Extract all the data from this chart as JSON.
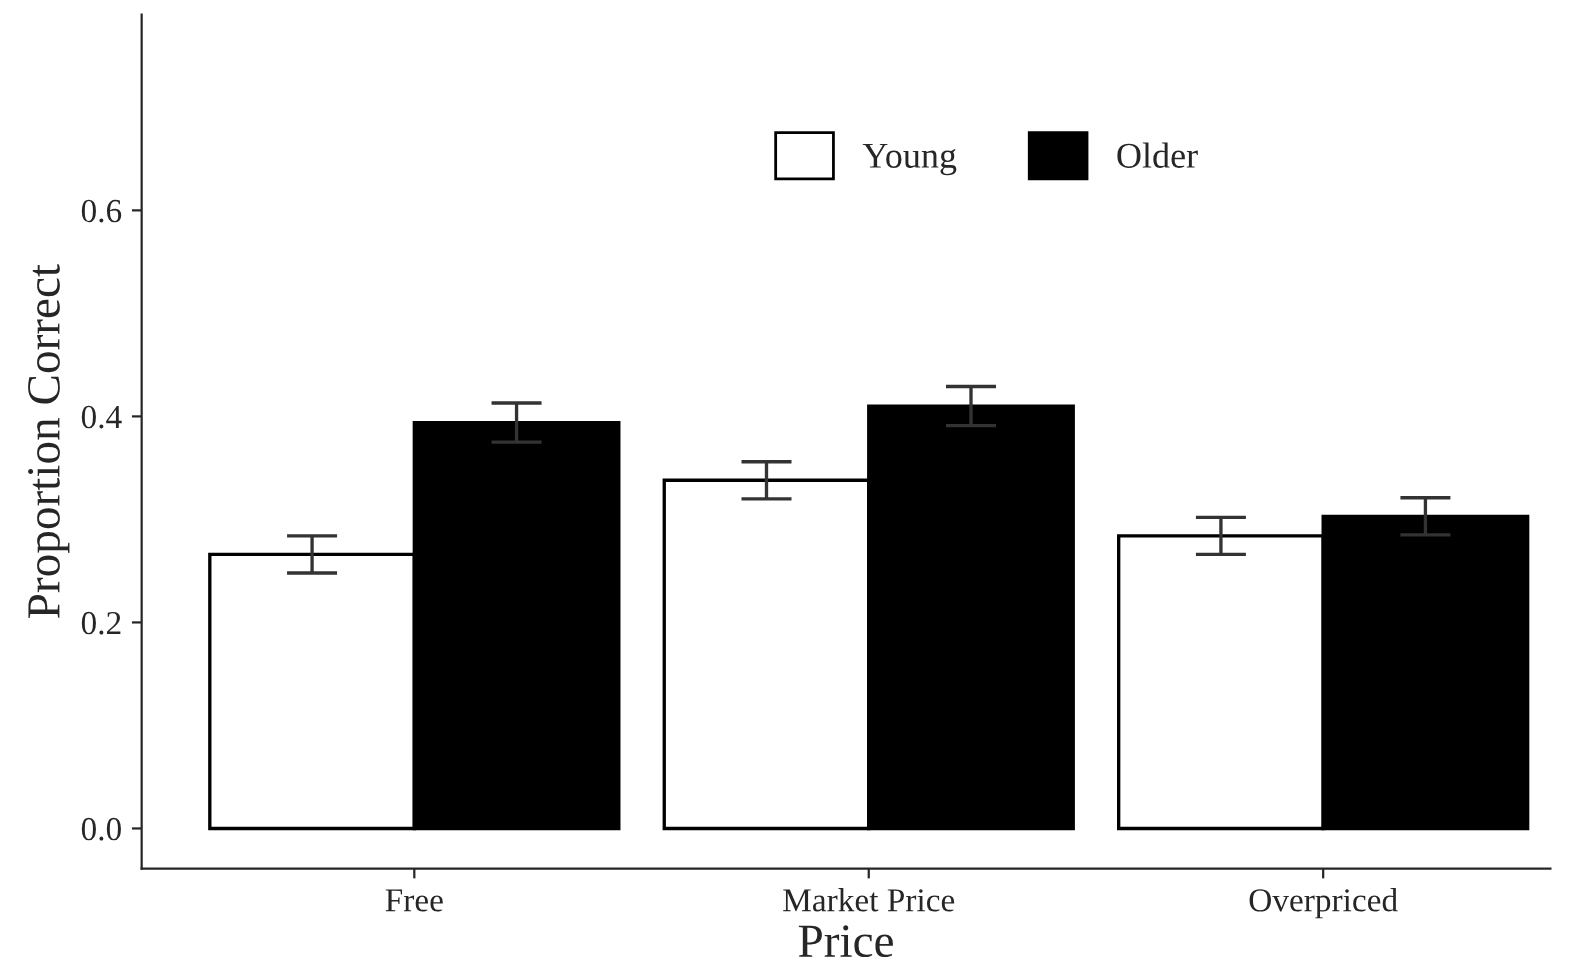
{
  "chart_data": {
    "type": "bar",
    "xlabel": "Price",
    "ylabel": "Proportion Correct",
    "categories": [
      "Free",
      "Market Price",
      "Overpriced"
    ],
    "series": [
      {
        "name": "Young",
        "color": "#ffffff",
        "values": [
          0.266,
          0.338,
          0.284
        ],
        "errors": [
          0.018,
          0.018,
          0.018
        ]
      },
      {
        "name": "Older",
        "color": "#000000",
        "values": [
          0.394,
          0.41,
          0.303
        ],
        "errors": [
          0.019,
          0.019,
          0.018
        ]
      }
    ],
    "ylim": [
      -0.039,
      0.79
    ],
    "yticks": [
      {
        "value": 0,
        "label": "0.0"
      },
      {
        "value": 0.2,
        "label": "0.2"
      },
      {
        "value": 0.4,
        "label": "0.4"
      },
      {
        "value": 0.6,
        "label": "0.6"
      }
    ],
    "legend": "top",
    "grid": false
  }
}
